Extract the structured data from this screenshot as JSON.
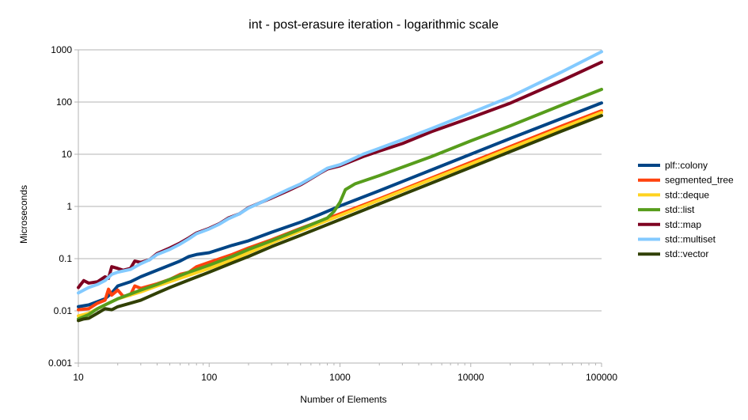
{
  "chart_data": {
    "type": "line",
    "title": "int - post-erasure iteration - logarithmic scale",
    "xlabel": "Number of Elements",
    "ylabel": "Microseconds",
    "x_scale": "log",
    "y_scale": "log",
    "xlim": [
      10,
      100000
    ],
    "ylim": [
      0.001,
      1000
    ],
    "x_ticks": [
      "10",
      "100",
      "1000",
      "10000",
      "100000"
    ],
    "y_ticks": [
      "0.001",
      "0.01",
      "0.1",
      "1",
      "10",
      "100",
      "1000"
    ],
    "x_tick_values": [
      10,
      100,
      1000,
      10000,
      100000
    ],
    "y_tick_values": [
      0.001,
      0.01,
      0.1,
      1,
      10,
      100,
      1000
    ],
    "grid": "horizontal",
    "legend_position": "right",
    "series": [
      {
        "name": "plf::colony",
        "color": "#004586",
        "points": [
          [
            10,
            0.012
          ],
          [
            12,
            0.013
          ],
          [
            14,
            0.015
          ],
          [
            16,
            0.017
          ],
          [
            18,
            0.022
          ],
          [
            20,
            0.03
          ],
          [
            25,
            0.036
          ],
          [
            30,
            0.045
          ],
          [
            40,
            0.06
          ],
          [
            50,
            0.075
          ],
          [
            60,
            0.09
          ],
          [
            70,
            0.11
          ],
          [
            80,
            0.12
          ],
          [
            100,
            0.13
          ],
          [
            150,
            0.18
          ],
          [
            200,
            0.22
          ],
          [
            300,
            0.32
          ],
          [
            500,
            0.5
          ],
          [
            700,
            0.7
          ],
          [
            1000,
            1.02
          ],
          [
            2000,
            2.0
          ],
          [
            5000,
            5.0
          ],
          [
            10000,
            10.0
          ],
          [
            20000,
            20.0
          ],
          [
            50000,
            49.0
          ],
          [
            100000,
            96.0
          ]
        ]
      },
      {
        "name": "segmented_tree",
        "color": "#ff420e",
        "points": [
          [
            10,
            0.0105
          ],
          [
            12,
            0.011
          ],
          [
            14,
            0.014
          ],
          [
            16,
            0.016
          ],
          [
            17,
            0.026
          ],
          [
            18,
            0.02
          ],
          [
            20,
            0.025
          ],
          [
            22,
            0.019
          ],
          [
            25,
            0.02
          ],
          [
            27,
            0.03
          ],
          [
            30,
            0.027
          ],
          [
            40,
            0.033
          ],
          [
            50,
            0.04
          ],
          [
            60,
            0.05
          ],
          [
            70,
            0.055
          ],
          [
            80,
            0.07
          ],
          [
            100,
            0.085
          ],
          [
            150,
            0.12
          ],
          [
            200,
            0.16
          ],
          [
            300,
            0.23
          ],
          [
            500,
            0.38
          ],
          [
            1000,
            0.72
          ],
          [
            2000,
            1.4
          ],
          [
            5000,
            3.5
          ],
          [
            10000,
            7.0
          ],
          [
            20000,
            14.0
          ],
          [
            50000,
            35.0
          ],
          [
            100000,
            68.0
          ]
        ]
      },
      {
        "name": "std::deque",
        "color": "#ffd320",
        "points": [
          [
            10,
            0.008
          ],
          [
            12,
            0.009
          ],
          [
            14,
            0.011
          ],
          [
            16,
            0.013
          ],
          [
            20,
            0.017
          ],
          [
            30,
            0.023
          ],
          [
            40,
            0.03
          ],
          [
            50,
            0.036
          ],
          [
            70,
            0.048
          ],
          [
            100,
            0.065
          ],
          [
            150,
            0.095
          ],
          [
            200,
            0.13
          ],
          [
            300,
            0.2
          ],
          [
            500,
            0.34
          ],
          [
            1000,
            0.67
          ],
          [
            2000,
            1.33
          ],
          [
            5000,
            3.3
          ],
          [
            10000,
            6.5
          ],
          [
            20000,
            13.0
          ],
          [
            50000,
            32.0
          ],
          [
            100000,
            63.0
          ]
        ]
      },
      {
        "name": "std::list",
        "color": "#579d1c",
        "points": [
          [
            10,
            0.007
          ],
          [
            12,
            0.0085
          ],
          [
            14,
            0.011
          ],
          [
            16,
            0.013
          ],
          [
            20,
            0.017
          ],
          [
            30,
            0.025
          ],
          [
            40,
            0.032
          ],
          [
            50,
            0.04
          ],
          [
            70,
            0.055
          ],
          [
            100,
            0.075
          ],
          [
            150,
            0.11
          ],
          [
            200,
            0.15
          ],
          [
            300,
            0.22
          ],
          [
            500,
            0.37
          ],
          [
            800,
            0.6
          ],
          [
            900,
            0.8
          ],
          [
            1000,
            1.2
          ],
          [
            1100,
            2.1
          ],
          [
            1300,
            2.7
          ],
          [
            2000,
            3.9
          ],
          [
            5000,
            9.0
          ],
          [
            10000,
            18.0
          ],
          [
            20000,
            35.0
          ],
          [
            50000,
            88.0
          ],
          [
            100000,
            175.0
          ]
        ]
      },
      {
        "name": "std::map",
        "color": "#7e0021",
        "points": [
          [
            10,
            0.028
          ],
          [
            11,
            0.038
          ],
          [
            12,
            0.034
          ],
          [
            14,
            0.036
          ],
          [
            16,
            0.045
          ],
          [
            17,
            0.042
          ],
          [
            18,
            0.07
          ],
          [
            20,
            0.065
          ],
          [
            22,
            0.06
          ],
          [
            25,
            0.065
          ],
          [
            27,
            0.09
          ],
          [
            30,
            0.085
          ],
          [
            35,
            0.095
          ],
          [
            40,
            0.125
          ],
          [
            50,
            0.16
          ],
          [
            60,
            0.2
          ],
          [
            70,
            0.25
          ],
          [
            80,
            0.31
          ],
          [
            100,
            0.38
          ],
          [
            120,
            0.47
          ],
          [
            140,
            0.6
          ],
          [
            170,
            0.72
          ],
          [
            200,
            0.95
          ],
          [
            250,
            1.2
          ],
          [
            300,
            1.45
          ],
          [
            400,
            2.0
          ],
          [
            500,
            2.6
          ],
          [
            600,
            3.4
          ],
          [
            700,
            4.3
          ],
          [
            800,
            5.2
          ],
          [
            1000,
            6.0
          ],
          [
            1200,
            7.2
          ],
          [
            1500,
            9.0
          ],
          [
            2000,
            11.5
          ],
          [
            3000,
            16.0
          ],
          [
            5000,
            27.0
          ],
          [
            10000,
            50.0
          ],
          [
            20000,
            95.0
          ],
          [
            50000,
            260.0
          ],
          [
            100000,
            580.0
          ]
        ]
      },
      {
        "name": "std::multiset",
        "color": "#83caff",
        "points": [
          [
            10,
            0.022
          ],
          [
            11,
            0.025
          ],
          [
            12,
            0.028
          ],
          [
            14,
            0.032
          ],
          [
            16,
            0.038
          ],
          [
            18,
            0.05
          ],
          [
            20,
            0.055
          ],
          [
            25,
            0.062
          ],
          [
            30,
            0.08
          ],
          [
            35,
            0.095
          ],
          [
            40,
            0.12
          ],
          [
            50,
            0.15
          ],
          [
            60,
            0.19
          ],
          [
            70,
            0.24
          ],
          [
            80,
            0.3
          ],
          [
            100,
            0.37
          ],
          [
            120,
            0.46
          ],
          [
            140,
            0.58
          ],
          [
            170,
            0.72
          ],
          [
            200,
            0.93
          ],
          [
            250,
            1.2
          ],
          [
            300,
            1.5
          ],
          [
            400,
            2.1
          ],
          [
            500,
            2.7
          ],
          [
            600,
            3.5
          ],
          [
            700,
            4.4
          ],
          [
            800,
            5.4
          ],
          [
            1000,
            6.3
          ],
          [
            1200,
            7.7
          ],
          [
            1500,
            10.0
          ],
          [
            2000,
            13.0
          ],
          [
            3000,
            19.0
          ],
          [
            5000,
            31.0
          ],
          [
            10000,
            62.0
          ],
          [
            20000,
            125.0
          ],
          [
            50000,
            380.0
          ],
          [
            100000,
            920.0
          ]
        ]
      },
      {
        "name": "std::vector",
        "color": "#314004",
        "points": [
          [
            10,
            0.0065
          ],
          [
            11,
            0.007
          ],
          [
            12,
            0.0072
          ],
          [
            14,
            0.009
          ],
          [
            16,
            0.011
          ],
          [
            18,
            0.0105
          ],
          [
            20,
            0.012
          ],
          [
            25,
            0.014
          ],
          [
            30,
            0.016
          ],
          [
            40,
            0.022
          ],
          [
            50,
            0.028
          ],
          [
            70,
            0.039
          ],
          [
            100,
            0.055
          ],
          [
            150,
            0.083
          ],
          [
            200,
            0.11
          ],
          [
            300,
            0.17
          ],
          [
            500,
            0.28
          ],
          [
            1000,
            0.56
          ],
          [
            2000,
            1.12
          ],
          [
            5000,
            2.8
          ],
          [
            10000,
            5.6
          ],
          [
            20000,
            11.2
          ],
          [
            50000,
            28.0
          ],
          [
            100000,
            55.0
          ]
        ]
      }
    ]
  }
}
